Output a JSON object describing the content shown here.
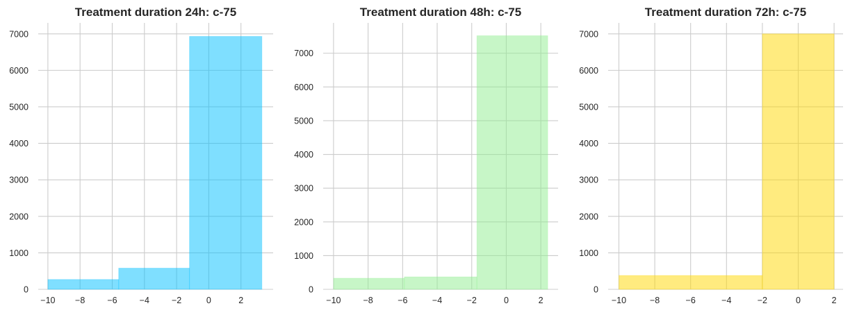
{
  "chart_data": [
    {
      "type": "bar",
      "title": "Treatment duration 24h: c-75",
      "color": "#00bfff",
      "opacity": 0.5,
      "xlim": [
        -10.6,
        4.0
      ],
      "ylim": [
        0,
        7300
      ],
      "xticks": [
        -10,
        -8,
        -6,
        -4,
        -2,
        0,
        2
      ],
      "yticks": [
        0,
        1000,
        2000,
        3000,
        4000,
        5000,
        6000,
        7000
      ],
      "bins": [
        {
          "x0": -10.0,
          "x1": -5.6,
          "value": 270
        },
        {
          "x0": -5.6,
          "x1": -1.2,
          "value": 580
        },
        {
          "x0": -1.2,
          "x1": 3.3,
          "value": 6930
        }
      ],
      "grid": true
    },
    {
      "type": "bar",
      "title": "Treatment duration 48h: c-75",
      "color": "#90ee90",
      "opacity": 0.5,
      "xlim": [
        -10.6,
        3.0
      ],
      "ylim": [
        0,
        7900
      ],
      "xticks": [
        -10,
        -8,
        -6,
        -4,
        -2,
        0,
        2
      ],
      "yticks": [
        0,
        1000,
        2000,
        3000,
        4000,
        5000,
        6000,
        7000
      ],
      "bins": [
        {
          "x0": -10.0,
          "x1": -5.9,
          "value": 330
        },
        {
          "x0": -5.9,
          "x1": -1.7,
          "value": 370
        },
        {
          "x0": -1.7,
          "x1": 2.4,
          "value": 7520
        }
      ],
      "grid": true
    },
    {
      "type": "bar",
      "title": "Treatment duration 72h: c-75",
      "color": "#ffd700",
      "opacity": 0.5,
      "xlim": [
        -10.6,
        2.5
      ],
      "ylim": [
        0,
        7300
      ],
      "xticks": [
        -10,
        -8,
        -6,
        -4,
        -2,
        0,
        2
      ],
      "yticks": [
        0,
        1000,
        2000,
        3000,
        4000,
        5000,
        6000,
        7000
      ],
      "bins": [
        {
          "x0": -10.0,
          "x1": -2.0,
          "value": 380
        },
        {
          "x0": -2.0,
          "x1": 2.0,
          "value": 7000
        }
      ],
      "grid": true
    }
  ]
}
